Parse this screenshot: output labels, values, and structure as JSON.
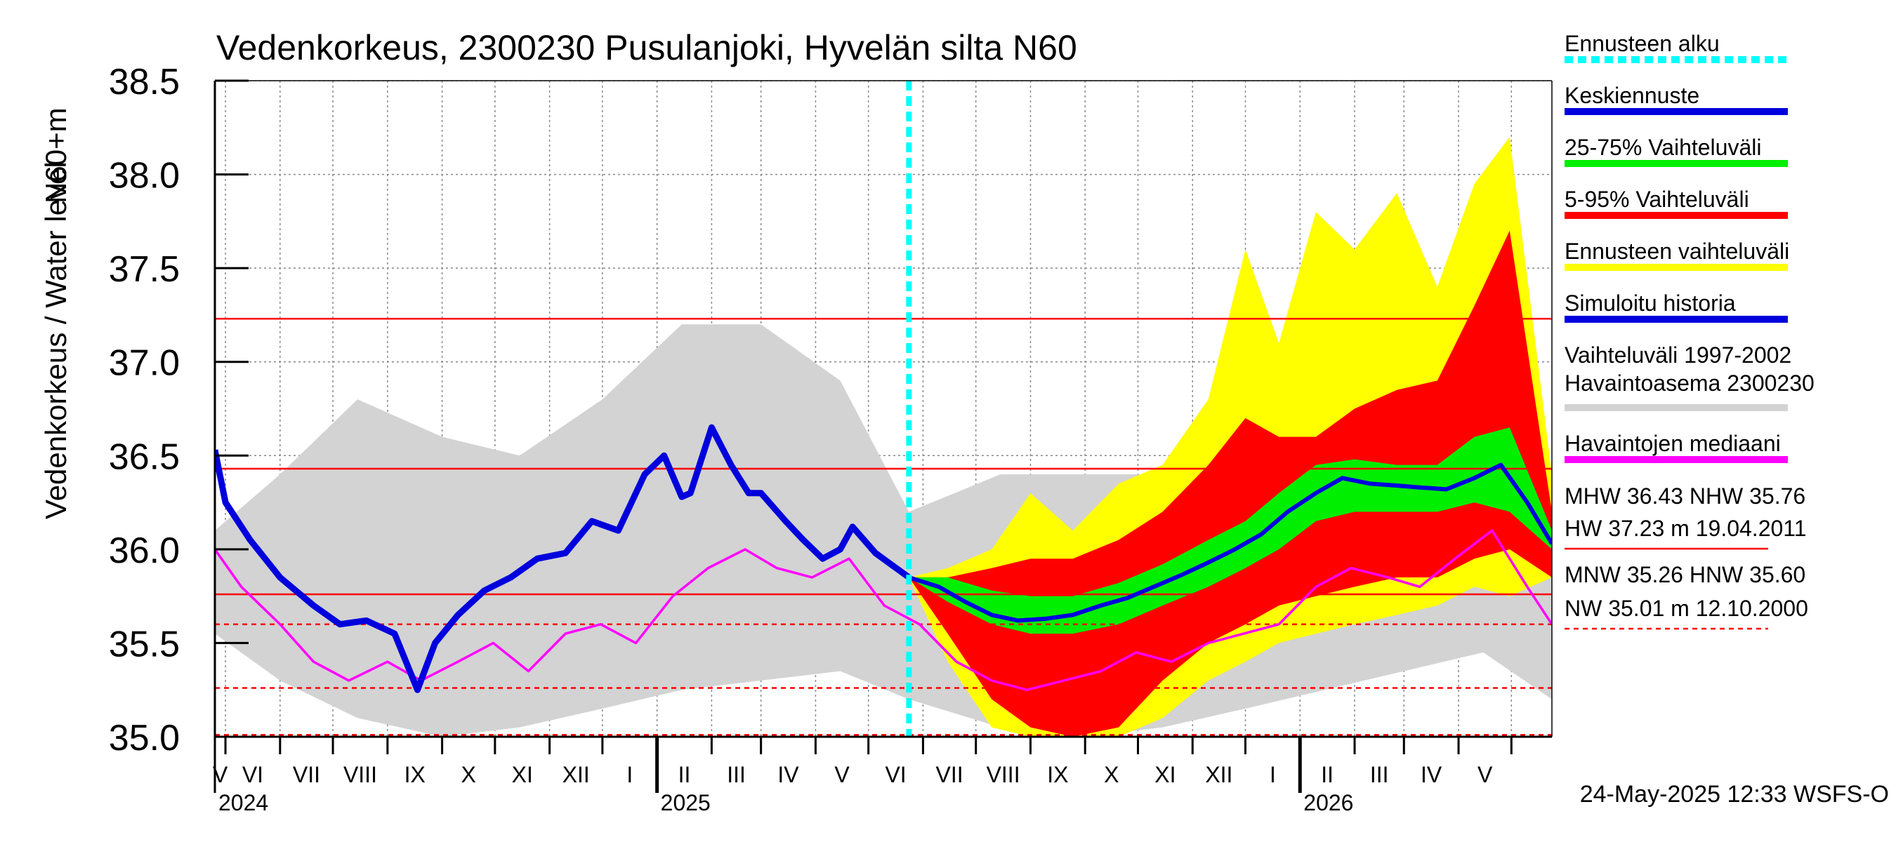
{
  "chart_data": {
    "type": "line",
    "title": "Vedenkorkeus, 2300230 Pusulanjoki, Hyvelän silta N60",
    "ylabel": "Vedenkorkeus / Water level",
    "ylabel_unit": "N60+m",
    "ylim": [
      35.0,
      38.5
    ],
    "y_ticks": [
      "35.0",
      "35.5",
      "36.0",
      "36.5",
      "37.0",
      "37.5",
      "38.0",
      "38.5"
    ],
    "x_range": [
      "2024-04-25",
      "2026-05-24"
    ],
    "month_labels": [
      "V",
      "VI",
      "VII",
      "VIII",
      "IX",
      "X",
      "XI",
      "XII",
      "I",
      "II",
      "III",
      "IV",
      "V",
      "VI",
      "VII",
      "VIII",
      "IX",
      "X",
      "XI",
      "XII",
      "I",
      "II",
      "III",
      "IV",
      "V"
    ],
    "year_labels": [
      "2024",
      "2025",
      "2026"
    ],
    "forecast_start": "2025-05-24",
    "grid": true,
    "reference_lines": [
      {
        "name": "HW",
        "value": 37.23,
        "style": "solid"
      },
      {
        "name": "MHW",
        "value": 36.43,
        "style": "solid"
      },
      {
        "name": "NHW",
        "value": 35.76,
        "style": "solid"
      },
      {
        "name": "HNW",
        "value": 35.6,
        "style": "dashed"
      },
      {
        "name": "MNW",
        "value": 35.26,
        "style": "dashed"
      },
      {
        "name": "NW",
        "value": 35.01,
        "style": "dashed"
      }
    ],
    "series": [
      {
        "name": "Simuloitu historia",
        "color": "#0000dd",
        "x": [
          "2024-04-25",
          "2024-05-01",
          "2024-05-15",
          "2024-06-01",
          "2024-06-20",
          "2024-07-05",
          "2024-07-20",
          "2024-08-05",
          "2024-08-18",
          "2024-08-28",
          "2024-09-10",
          "2024-09-25",
          "2024-10-10",
          "2024-10-25",
          "2024-11-10",
          "2024-11-25",
          "2024-12-10",
          "2024-12-25",
          "2025-01-05",
          "2025-01-15",
          "2025-01-20",
          "2025-02-01",
          "2025-02-12",
          "2025-02-22",
          "2025-03-01",
          "2025-03-15",
          "2025-03-25",
          "2025-04-05",
          "2025-04-15",
          "2025-04-22",
          "2025-05-05",
          "2025-05-24"
        ],
        "y": [
          36.53,
          36.25,
          36.05,
          35.85,
          35.7,
          35.6,
          35.62,
          35.55,
          35.25,
          35.5,
          35.65,
          35.78,
          35.85,
          35.95,
          35.98,
          36.15,
          36.1,
          36.4,
          36.5,
          36.28,
          36.3,
          36.65,
          36.45,
          36.3,
          36.3,
          36.15,
          36.05,
          35.95,
          36.0,
          36.12,
          35.98,
          35.85
        ]
      },
      {
        "name": "Keskiennuste",
        "color": "#0000dd",
        "x": [
          "2025-05-24",
          "2025-06-10",
          "2025-06-25",
          "2025-07-10",
          "2025-07-25",
          "2025-08-10",
          "2025-08-25",
          "2025-09-10",
          "2025-09-25",
          "2025-10-10",
          "2025-10-25",
          "2025-11-10",
          "2025-11-25",
          "2025-12-10",
          "2025-12-25",
          "2026-01-10",
          "2026-01-25",
          "2026-02-10",
          "2026-02-25",
          "2026-03-10",
          "2026-03-25",
          "2026-04-10",
          "2026-04-25",
          "2026-05-10",
          "2026-05-24"
        ],
        "y": [
          35.85,
          35.8,
          35.72,
          35.65,
          35.62,
          35.63,
          35.65,
          35.7,
          35.74,
          35.8,
          35.86,
          35.93,
          36.0,
          36.08,
          36.2,
          36.3,
          36.38,
          36.35,
          36.34,
          36.33,
          36.32,
          36.38,
          36.45,
          36.25,
          36.03
        ]
      },
      {
        "name": "Havaintojen mediaani",
        "color": "#ff00ff",
        "x": [
          "2024-04-25",
          "2024-05-10",
          "2024-06-01",
          "2024-06-20",
          "2024-07-10",
          "2024-08-01",
          "2024-08-20",
          "2024-09-10",
          "2024-09-30",
          "2024-10-20",
          "2024-11-10",
          "2024-11-30",
          "2024-12-20",
          "2025-01-10",
          "2025-01-30",
          "2025-02-20",
          "2025-03-10",
          "2025-03-30",
          "2025-04-20",
          "2025-05-10",
          "2025-05-30",
          "2025-06-20",
          "2025-07-10",
          "2025-07-30",
          "2025-08-20",
          "2025-09-10",
          "2025-09-30",
          "2025-10-20",
          "2025-11-10",
          "2025-11-30",
          "2025-12-20",
          "2026-01-10",
          "2026-01-30",
          "2026-02-20",
          "2026-03-10",
          "2026-03-30",
          "2026-04-20",
          "2026-05-10",
          "2026-05-24"
        ],
        "y": [
          36.0,
          35.8,
          35.6,
          35.4,
          35.3,
          35.4,
          35.3,
          35.4,
          35.5,
          35.35,
          35.55,
          35.6,
          35.5,
          35.75,
          35.9,
          36.0,
          35.9,
          35.85,
          35.95,
          35.7,
          35.6,
          35.4,
          35.3,
          35.25,
          35.3,
          35.35,
          35.45,
          35.4,
          35.5,
          35.55,
          35.6,
          35.8,
          35.9,
          35.85,
          35.8,
          35.95,
          36.1,
          35.8,
          35.6
        ]
      },
      {
        "name": "Vaihteluväli 1997-2002 Havaintoasema 2300230",
        "color": "#d3d3d3",
        "x": [
          "2024-04-25",
          "2024-06-01",
          "2024-07-15",
          "2024-09-01",
          "2024-10-15",
          "2024-12-01",
          "2025-01-15",
          "2025-03-01",
          "2025-04-15",
          "2025-05-24",
          "2025-07-15",
          "2025-09-01",
          "2025-10-15",
          "2025-12-01",
          "2026-01-15",
          "2026-03-01",
          "2026-04-15",
          "2026-05-24"
        ],
        "y_low": [
          35.55,
          35.3,
          35.1,
          35.0,
          35.05,
          35.15,
          35.25,
          35.3,
          35.35,
          35.2,
          35.05,
          35.0,
          35.05,
          35.15,
          35.25,
          35.35,
          35.45,
          35.2
        ],
        "y_high": [
          36.1,
          36.4,
          36.8,
          36.6,
          36.5,
          36.8,
          37.2,
          37.2,
          36.9,
          36.2,
          36.4,
          36.4,
          36.4,
          36.6,
          36.9,
          36.9,
          37.2,
          36.4
        ]
      },
      {
        "name": "Ennusteen vaihteluväli",
        "color": "#ffff00",
        "x": [
          "2025-05-24",
          "2025-06-15",
          "2025-07-10",
          "2025-08-01",
          "2025-08-25",
          "2025-09-20",
          "2025-10-15",
          "2025-11-10",
          "2025-12-01",
          "2025-12-20",
          "2026-01-10",
          "2026-02-01",
          "2026-02-25",
          "2026-03-20",
          "2026-04-10",
          "2026-04-30",
          "2026-05-24"
        ],
        "y_low": [
          35.85,
          35.4,
          35.05,
          35.0,
          35.0,
          35.0,
          35.1,
          35.3,
          35.4,
          35.5,
          35.55,
          35.6,
          35.65,
          35.7,
          35.8,
          35.75,
          35.85
        ],
        "y_high": [
          35.85,
          35.9,
          36.0,
          36.3,
          36.1,
          36.35,
          36.45,
          36.8,
          37.6,
          37.1,
          37.8,
          37.6,
          37.9,
          37.4,
          37.95,
          38.2,
          36.4
        ]
      },
      {
        "name": "5-95% Vaihteluväli",
        "color": "#ff0000",
        "x": [
          "2025-05-24",
          "2025-06-15",
          "2025-07-10",
          "2025-08-01",
          "2025-08-25",
          "2025-09-20",
          "2025-10-15",
          "2025-11-10",
          "2025-12-01",
          "2025-12-20",
          "2026-01-10",
          "2026-02-01",
          "2026-02-25",
          "2026-03-20",
          "2026-04-10",
          "2026-04-30",
          "2026-05-24"
        ],
        "y_low": [
          35.85,
          35.55,
          35.2,
          35.05,
          35.0,
          35.05,
          35.3,
          35.5,
          35.6,
          35.7,
          35.75,
          35.8,
          35.85,
          35.85,
          35.95,
          36.0,
          35.85
        ],
        "y_high": [
          35.85,
          35.85,
          35.9,
          35.95,
          35.95,
          36.05,
          36.2,
          36.45,
          36.7,
          36.6,
          36.6,
          36.75,
          36.85,
          36.9,
          37.3,
          37.7,
          36.2
        ]
      },
      {
        "name": "25-75% Vaihteluväli",
        "color": "#00ee00",
        "x": [
          "2025-05-24",
          "2025-06-15",
          "2025-07-10",
          "2025-08-01",
          "2025-08-25",
          "2025-09-20",
          "2025-10-15",
          "2025-11-10",
          "2025-12-01",
          "2025-12-20",
          "2026-01-10",
          "2026-02-01",
          "2026-02-25",
          "2026-03-20",
          "2026-04-10",
          "2026-04-30",
          "2026-05-24"
        ],
        "y_low": [
          35.85,
          35.72,
          35.6,
          35.55,
          35.55,
          35.6,
          35.7,
          35.8,
          35.9,
          36.0,
          36.15,
          36.2,
          36.2,
          36.2,
          36.25,
          36.2,
          36.0
        ],
        "y_high": [
          35.85,
          35.85,
          35.78,
          35.75,
          35.75,
          35.82,
          35.92,
          36.05,
          36.15,
          36.3,
          36.45,
          36.48,
          36.45,
          36.45,
          36.6,
          36.65,
          36.1
        ]
      }
    ],
    "legend": [
      {
        "label": "Ennusteen alku",
        "color": "#00ffff",
        "style": "dotted"
      },
      {
        "label": "Keskiennuste",
        "color": "#0000dd",
        "style": "solid"
      },
      {
        "label": "25-75% Vaihteluväli",
        "color": "#00ee00",
        "style": "solid"
      },
      {
        "label": "5-95% Vaihteluväli",
        "color": "#ff0000",
        "style": "solid"
      },
      {
        "label": "Ennusteen vaihteluväli",
        "color": "#ffff00",
        "style": "solid"
      },
      {
        "label": "Simuloitu historia",
        "color": "#0000dd",
        "style": "solid"
      },
      {
        "label": "Vaihteluväli 1997-2002",
        "label2": " Havaintoasema 2300230",
        "color": "#d3d3d3",
        "style": "solid"
      },
      {
        "label": "Havaintojen mediaani",
        "color": "#ff00ff",
        "style": "solid"
      }
    ],
    "legend_position": "right",
    "stats_lines": [
      {
        "text": "MHW  36.43 NHW  35.76",
        "line": false
      },
      {
        "text": "HW  37.23 m 19.04.2011",
        "line": "solid"
      },
      {
        "text": "MNW  35.26 HNW  35.60",
        "line": false
      },
      {
        "text": "NW  35.01 m 12.10.2000",
        "line": "dashed"
      }
    ],
    "footer": "24-May-2025 12:33 WSFS-O"
  }
}
